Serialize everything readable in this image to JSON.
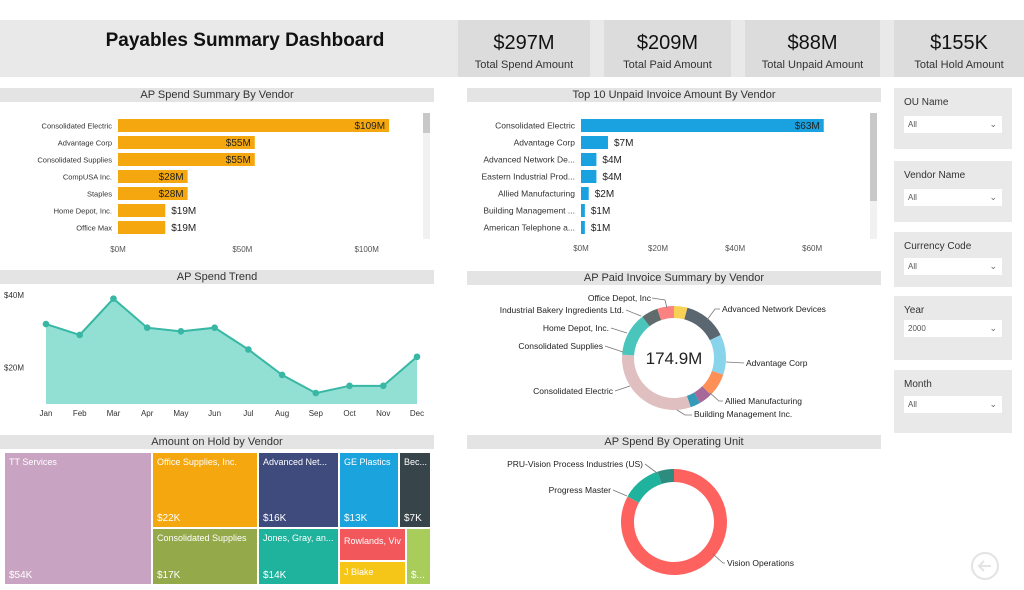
{
  "header": {
    "title": "Payables Summary Dashboard"
  },
  "kpis": [
    {
      "value": "$297M",
      "label": "Total Spend Amount"
    },
    {
      "value": "$209M",
      "label": "Total Paid Amount"
    },
    {
      "value": "$88M",
      "label": "Total Unpaid Amount"
    },
    {
      "value": "$155K",
      "label": "Total Hold Amount"
    }
  ],
  "slicers": [
    {
      "label": "OU Name",
      "value": "All"
    },
    {
      "label": "Vendor Name",
      "value": "All"
    },
    {
      "label": "Currency Code",
      "value": "All"
    },
    {
      "label": "Year",
      "value": "2000"
    },
    {
      "label": "Month",
      "value": "All"
    }
  ],
  "colors": {
    "orange": "#f5a70f",
    "blue": "#1aa1e0",
    "teal": "#37b7a4",
    "tealFill": "#92e0d3"
  },
  "chart_data": [
    {
      "type": "bar",
      "orientation": "horizontal",
      "title": "AP Spend Summary By Vendor",
      "categories": [
        "Consolidated Electric",
        "Advantage Corp",
        "Consolidated Supplies",
        "CompUSA Inc.",
        "Staples",
        "Home Depot, Inc.",
        "Office Max"
      ],
      "values": [
        109,
        55,
        55,
        28,
        28,
        19,
        19
      ],
      "data_labels": [
        "$109M",
        "$55M",
        "$55M",
        "$28M",
        "$28M",
        "$19M",
        "$19M"
      ],
      "ticks": [
        "$0M",
        "$50M",
        "$100M"
      ],
      "xlim": [
        0,
        115
      ]
    },
    {
      "type": "bar",
      "orientation": "horizontal",
      "title": "Top 10 Unpaid Invoice Amount By Vendor",
      "categories": [
        "Consolidated Electric",
        "Advantage Corp",
        "Advanced Network De...",
        "Eastern Industrial Prod...",
        "Allied Manufacturing",
        "Building Management ...",
        "American Telephone a..."
      ],
      "values": [
        63,
        7,
        4,
        4,
        2,
        1,
        1
      ],
      "data_labels": [
        "$63M",
        "$7M",
        "$4M",
        "$4M",
        "$2M",
        "$1M",
        "$1M"
      ],
      "ticks": [
        "$0M",
        "$20M",
        "$40M",
        "$60M"
      ],
      "xlim": [
        0,
        68
      ]
    },
    {
      "type": "area",
      "title": "AP Spend Trend",
      "categories": [
        "Jan",
        "Feb",
        "Mar",
        "Apr",
        "May",
        "Jun",
        "Jul",
        "Aug",
        "Sep",
        "Oct",
        "Nov",
        "Dec"
      ],
      "values": [
        32,
        29,
        39,
        31,
        30,
        31,
        25,
        18,
        13,
        15,
        15,
        23
      ],
      "ticks": [
        "$40M",
        "$20M"
      ],
      "ylim": [
        10,
        40
      ]
    },
    {
      "type": "pie",
      "title": "AP Paid Invoice Summary by Vendor",
      "center_label": "174.9M",
      "slices": [
        {
          "label": "Office Depot, Inc",
          "value": 4,
          "color": "#f6d155"
        },
        {
          "label": "Advanced Network Devices",
          "value": 13,
          "color": "#5a6770"
        },
        {
          "label": "Advantage Corp",
          "value": 12,
          "color": "#8ad4eb"
        },
        {
          "label": "Allied Manufacturing",
          "value": 7,
          "color": "#fd8f57"
        },
        {
          "label": "Building Management Inc.",
          "value": 4,
          "color": "#a66999"
        },
        {
          "label": "",
          "value": 3,
          "color": "#3599b8"
        },
        {
          "label": "Consolidated Electric",
          "value": 30,
          "color": "#dfbfbf"
        },
        {
          "label": "Consolidated Supplies",
          "value": 13,
          "color": "#4ac5bb"
        },
        {
          "label": "Home Depot, Inc.",
          "value": 5,
          "color": "#5f6b6d"
        },
        {
          "label": "Industrial Bakery Ingredients Ltd.",
          "value": 5,
          "color": "#fb8281"
        }
      ]
    },
    {
      "type": "treemap",
      "title": "Amount on Hold by Vendor",
      "items": [
        {
          "label": "TT Services",
          "value": "$54K",
          "color": "#c9a4c2"
        },
        {
          "label": "Office Supplies, Inc.",
          "value": "$22K",
          "color": "#f5a70f"
        },
        {
          "label": "Consolidated Supplies",
          "value": "$17K",
          "color": "#94a94a"
        },
        {
          "label": "Advanced Net...",
          "value": "$16K",
          "color": "#3e4b7c"
        },
        {
          "label": "Jones, Gray, an...",
          "value": "$14K",
          "color": "#1fb29c"
        },
        {
          "label": "GE Plastics",
          "value": "$13K",
          "color": "#1ba3dd"
        },
        {
          "label": "Rowlands, Viv",
          "value": "",
          "color": "#f2575b"
        },
        {
          "label": "J Blake",
          "value": "",
          "color": "#f5c518"
        },
        {
          "label": "Bec...",
          "value": "$7K",
          "color": "#374449"
        },
        {
          "label": "",
          "value": "$...",
          "color": "#a8cd5a"
        }
      ]
    },
    {
      "type": "pie",
      "title": "AP Spend By Operating Unit",
      "slices": [
        {
          "label": "Vision Operations",
          "value": 83,
          "color": "#fd625e"
        },
        {
          "label": "Progress Master",
          "value": 12,
          "color": "#1fb29c"
        },
        {
          "label": "PRU-Vision Process Industries (US)",
          "value": 5,
          "color": "#2b8c7f"
        }
      ]
    }
  ]
}
